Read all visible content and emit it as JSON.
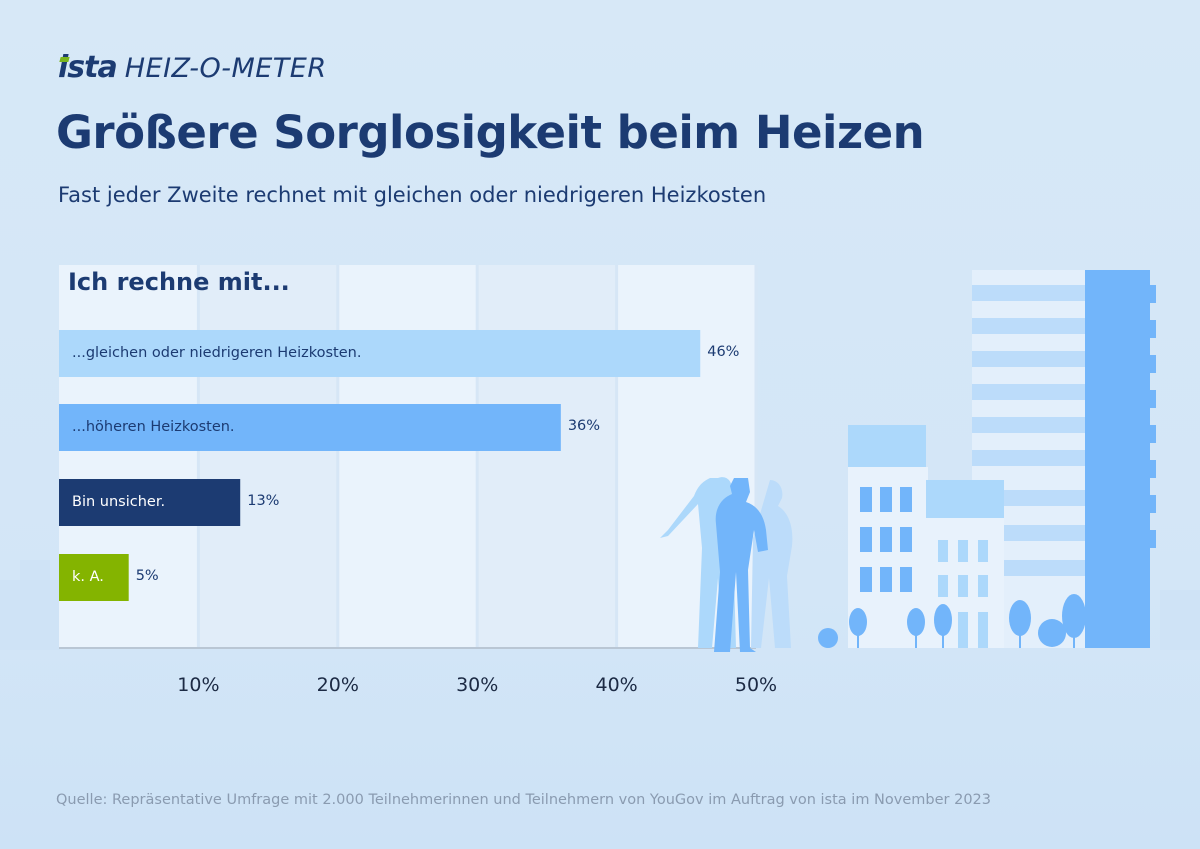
{
  "brand": {
    "logo": "ista",
    "product": "HEIZ-O-METER",
    "accent_green": "#7ab51d",
    "navy": "#1c3b72"
  },
  "title": "Größere Sorglosigkeit beim Heizen",
  "subtitle": "Fast jeder Zweite rechnet mit gleichen oder niedrigeren Heizkosten",
  "source": "Quelle: Repräsentative Umfrage mit 2.000 Teilnehmerinnen und Teilnehmern von YouGov im Auftrag von ista im November 2023",
  "chart_data": {
    "type": "bar",
    "orientation": "horizontal",
    "title": "Ich rechne mit...",
    "categories": [
      "...gleichen oder niedrigeren Heizkosten.",
      "...höheren Heizkosten.",
      "Bin unsicher.",
      "k. A."
    ],
    "values": [
      46,
      36,
      13,
      5
    ],
    "value_labels": [
      "46%",
      "36%",
      "13%",
      "5%"
    ],
    "colors": [
      "#acd8fb",
      "#72b5fa",
      "#1c3b72",
      "#84b400"
    ],
    "label_colors": [
      "#1c3b72",
      "#1c3b72",
      "#ffffff",
      "#ffffff"
    ],
    "xlim": [
      0,
      50
    ],
    "xticks": [
      10,
      20,
      30,
      40,
      50
    ],
    "xtick_labels": [
      "10%",
      "20%",
      "30%",
      "40%",
      "50%"
    ],
    "grid": true,
    "legend": "none"
  }
}
